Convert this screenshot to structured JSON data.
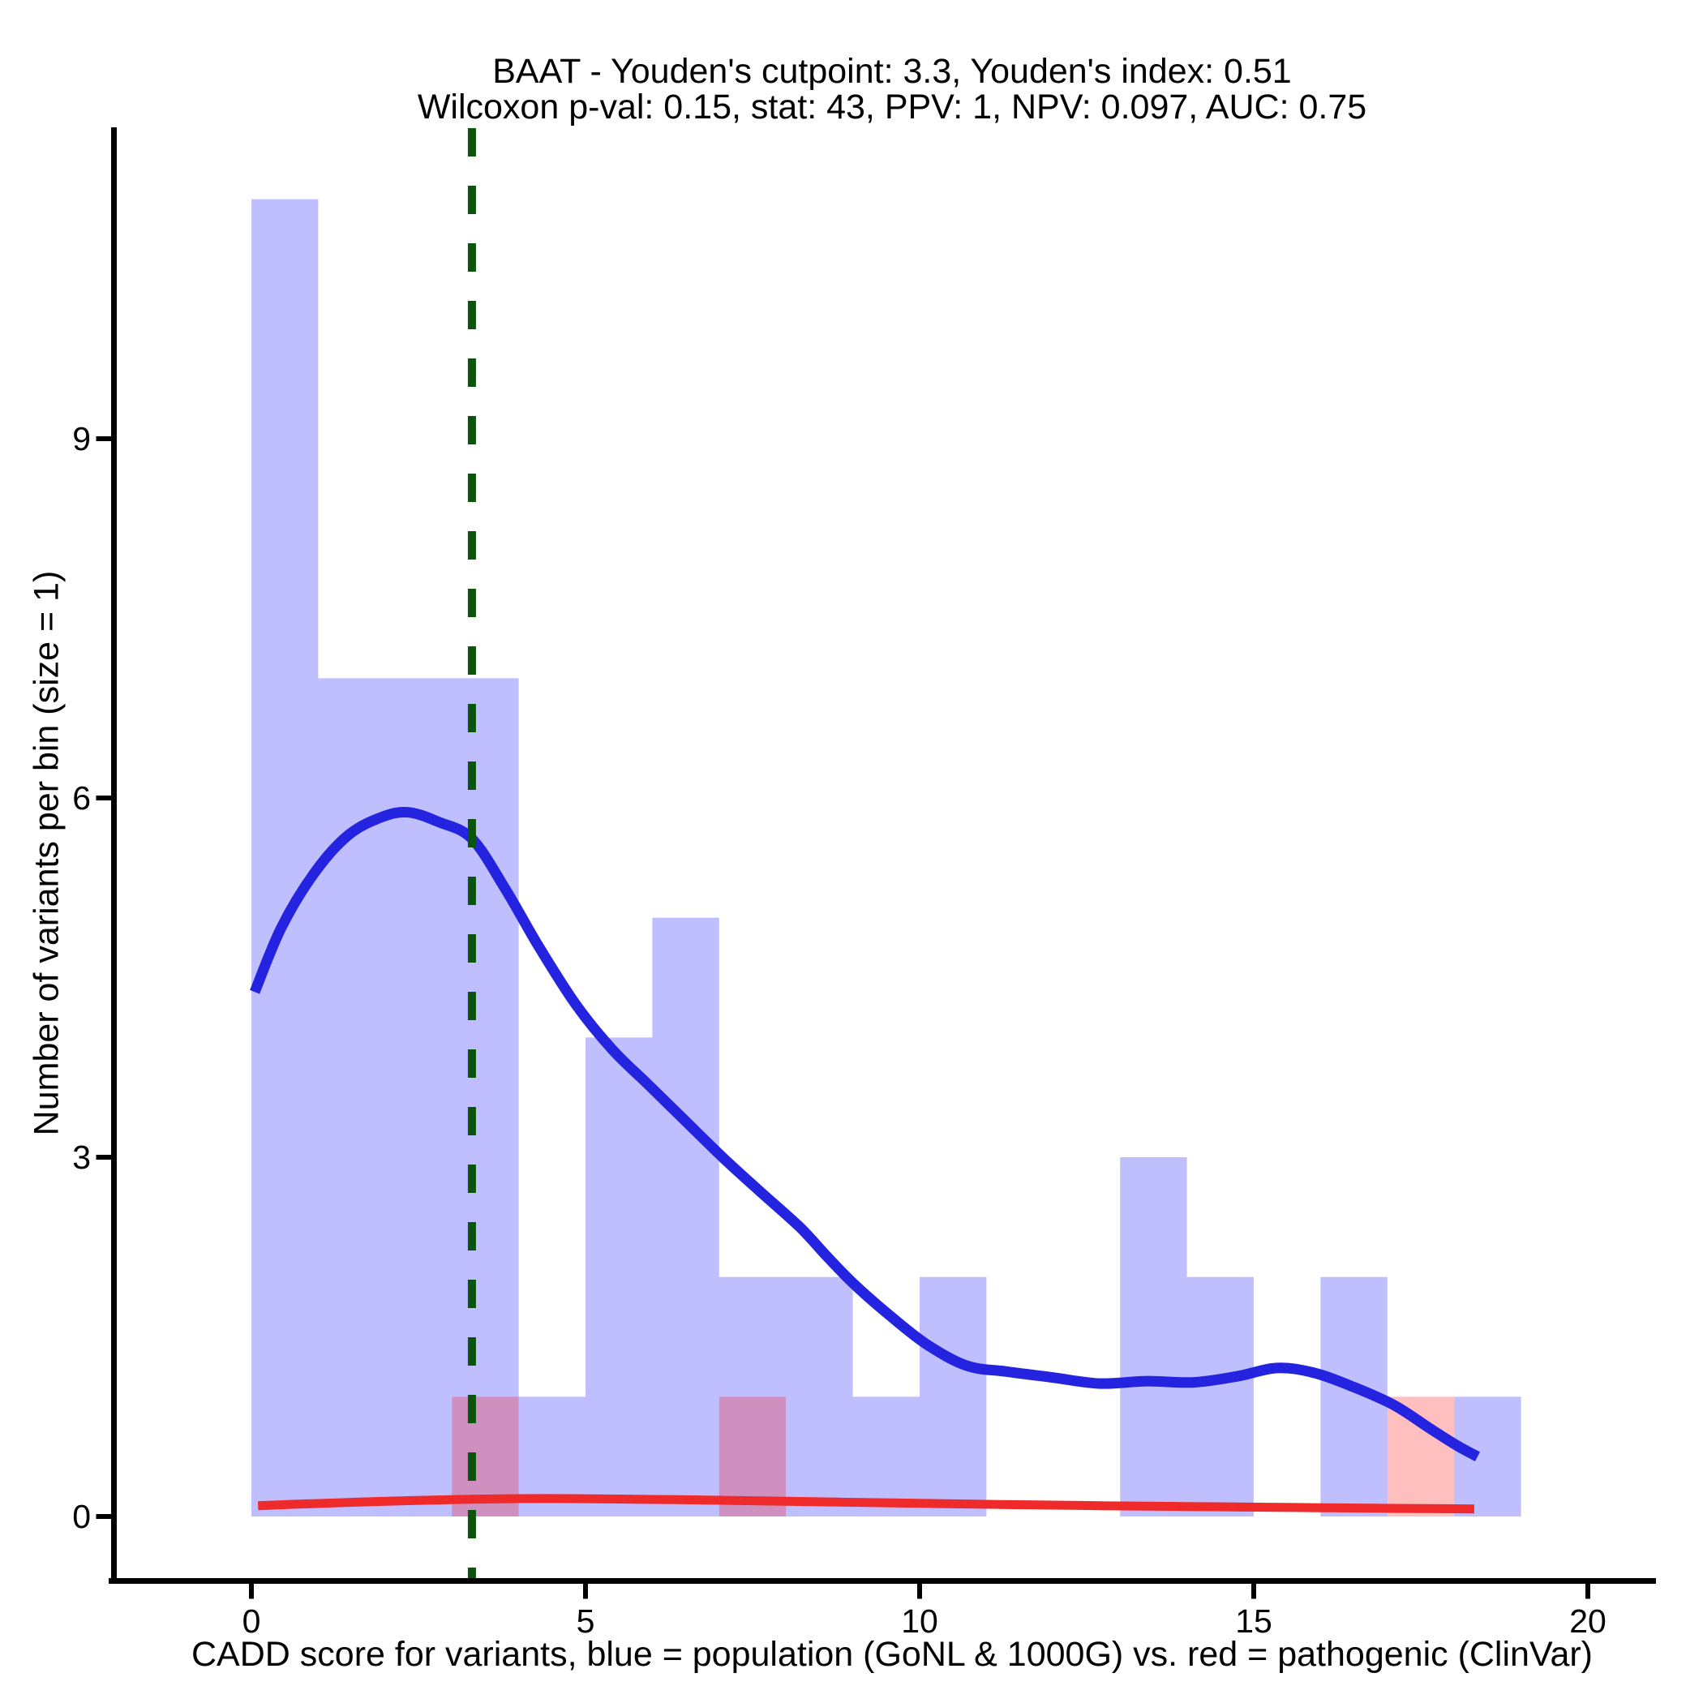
{
  "title": {
    "line1": "BAAT - Youden's cutpoint: 3.3, Youden's index: 0.51",
    "line2": "Wilcoxon p-val: 0.15, stat: 43, PPV: 1, NPV: 0.097, AUC: 0.75"
  },
  "stats": {
    "gene": "BAAT",
    "youden_cutpoint": 3.3,
    "youden_index": 0.51,
    "wilcoxon_p_val": 0.15,
    "wilcoxon_stat": 43,
    "ppv": 1,
    "npv": 0.097,
    "auc": 0.75
  },
  "axes": {
    "x_label": "CADD score for variants, blue = population (GoNL & 1000G) vs. red = pathogenic (ClinVar)",
    "y_label": "Number of variants per bin (size = 1)",
    "x_ticks": [
      0,
      5,
      10,
      15,
      20
    ],
    "y_ticks": [
      0,
      3,
      6,
      9
    ]
  },
  "chart_data": {
    "type": "histogram+density",
    "title": "BAAT - Youden's cutpoint: 3.3, Youden's index: 0.51 / Wilcoxon p-val: 0.15, stat: 43, PPV: 1, NPV: 0.097, AUC: 0.75",
    "xlabel": "CADD score for variants, blue = population (GoNL & 1000G) vs. red = pathogenic (ClinVar)",
    "ylabel": "Number of variants per bin (size = 1)",
    "x_range": [
      0,
      20
    ],
    "y_tick_range": [
      0,
      9
    ],
    "grid": false,
    "legend": "none",
    "bin_width": 1,
    "bin_start": 0,
    "series": [
      {
        "name": "population (GoNL & 1000G)",
        "kind": "histogram",
        "fill": "rgba(0,0,255,0.25)",
        "bins": [
          11,
          7,
          7,
          7,
          1,
          4,
          5,
          2,
          2,
          1,
          2,
          0,
          0,
          3,
          2,
          0,
          2,
          0,
          1
        ]
      },
      {
        "name": "pathogenic (ClinVar)",
        "kind": "histogram",
        "fill": "rgba(255,0,0,0.25)",
        "bins": [
          0,
          0,
          0,
          1,
          0,
          0,
          0,
          1,
          0,
          0,
          0,
          0,
          0,
          0,
          0,
          0,
          0,
          1,
          0
        ]
      }
    ],
    "density_curves": [
      {
        "name": "population density",
        "color": "#2323e0",
        "stroke_width": 13,
        "points": [
          [
            0.05,
            4.38
          ],
          [
            0.45,
            4.92
          ],
          [
            0.95,
            5.38
          ],
          [
            1.45,
            5.69
          ],
          [
            1.95,
            5.84
          ],
          [
            2.35,
            5.88
          ],
          [
            2.8,
            5.8
          ],
          [
            3.3,
            5.66
          ],
          [
            3.8,
            5.24
          ],
          [
            4.3,
            4.76
          ],
          [
            4.85,
            4.28
          ],
          [
            5.4,
            3.9
          ],
          [
            5.95,
            3.6
          ],
          [
            6.5,
            3.3
          ],
          [
            7.05,
            3.0
          ],
          [
            7.6,
            2.72
          ],
          [
            8.2,
            2.42
          ],
          [
            8.6,
            2.18
          ],
          [
            9.0,
            1.95
          ],
          [
            9.55,
            1.68
          ],
          [
            10.1,
            1.44
          ],
          [
            10.7,
            1.26
          ],
          [
            11.3,
            1.21
          ],
          [
            12.0,
            1.16
          ],
          [
            12.7,
            1.11
          ],
          [
            13.4,
            1.13
          ],
          [
            14.1,
            1.12
          ],
          [
            14.75,
            1.17
          ],
          [
            15.35,
            1.24
          ],
          [
            15.9,
            1.2
          ],
          [
            16.5,
            1.08
          ],
          [
            17.1,
            0.93
          ],
          [
            17.65,
            0.73
          ],
          [
            18.05,
            0.59
          ],
          [
            18.35,
            0.5
          ]
        ]
      },
      {
        "name": "pathogenic density",
        "color": "#ee2a2a",
        "stroke_width": 11,
        "points": [
          [
            0.1,
            0.09
          ],
          [
            0.8,
            0.105
          ],
          [
            1.6,
            0.12
          ],
          [
            2.4,
            0.133
          ],
          [
            3.2,
            0.143
          ],
          [
            4.0,
            0.149
          ],
          [
            4.8,
            0.149
          ],
          [
            5.6,
            0.145
          ],
          [
            6.4,
            0.14
          ],
          [
            7.2,
            0.134
          ],
          [
            8.0,
            0.127
          ],
          [
            8.8,
            0.12
          ],
          [
            9.6,
            0.113
          ],
          [
            10.4,
            0.107
          ],
          [
            11.2,
            0.1
          ],
          [
            12.0,
            0.095
          ],
          [
            12.8,
            0.089
          ],
          [
            13.6,
            0.085
          ],
          [
            14.4,
            0.081
          ],
          [
            15.2,
            0.077
          ],
          [
            16.0,
            0.073
          ],
          [
            16.8,
            0.069
          ],
          [
            17.6,
            0.066
          ],
          [
            18.3,
            0.063
          ]
        ]
      }
    ],
    "cutpoint_line": {
      "x": 3.3,
      "color": "#0b540b",
      "linetype": "dashed"
    }
  },
  "colors": {
    "background": "#ffffff",
    "axis": "#000000",
    "population_fill": "rgba(0,0,255,0.25)",
    "pathogenic_fill": "rgba(255,0,0,0.25)",
    "population_curve": "#2323e0",
    "pathogenic_curve": "#ee2a2a",
    "cutpoint": "#0b540b"
  }
}
